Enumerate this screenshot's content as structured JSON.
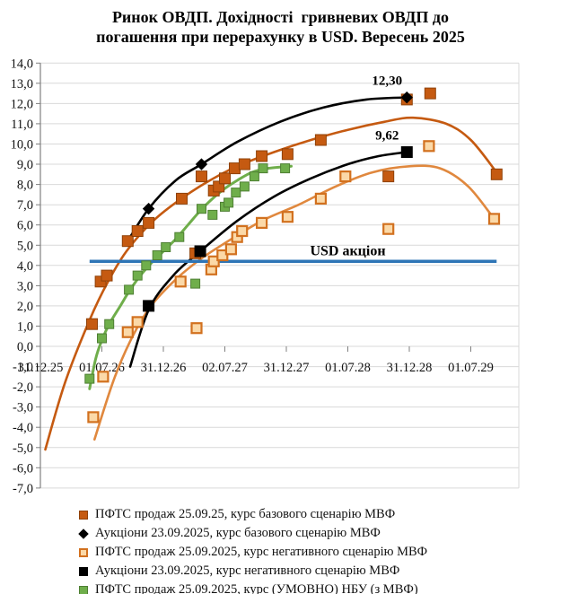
{
  "title_lines": [
    "Ринок ОВДП. Дохідності  гривневих ОВДП до",
    "погашення при перерахунку в USD. Вересень 2025"
  ],
  "colors": {
    "base_orange": "#C55A11",
    "neg_orange_line": "#E0883E",
    "neg_orange_fill": "#FBD9A8",
    "neg_orange_border": "#D2711F",
    "green": "#6FAE4B",
    "black": "#000000",
    "usd_blue": "#2E75B6",
    "grid": "#D9D9D9",
    "axis": "#808080"
  },
  "chart_data": {
    "type": "scatter",
    "title": "Ринок ОВДП. Дохідності гривневих ОВДП до погашення при перерахунку в USD. Вересень 2025",
    "x_unit_note": "x = years after 31.12.2025; axis ticks every 0.5 year",
    "x_ticks": [
      "31.12.25",
      "01.07.26",
      "31.12.26",
      "02.07.27",
      "31.12.27",
      "01.07.28",
      "31.12.28",
      "01.07.29"
    ],
    "x_tick_years": [
      0,
      0.5,
      1.0,
      1.5,
      2.0,
      2.5,
      3.0,
      3.5
    ],
    "y_tick_values": [
      14,
      13,
      12,
      11,
      10,
      9,
      8,
      7,
      6,
      5,
      4,
      3,
      2,
      1,
      0,
      -1,
      -2,
      -3,
      -4,
      -5,
      -6,
      -7
    ],
    "y_tick_labels": [
      "14,0",
      "13,0",
      "12,0",
      "11,0",
      "10,0",
      "9,0",
      "8,0",
      "7,0",
      "6,0",
      "5,0",
      "4,0",
      "3,0",
      "2,0",
      "1,0",
      "0,0",
      "-1,0",
      "-2,0",
      "-3,0",
      "-4,0",
      "-5,0",
      "-6,0",
      "-7,0"
    ],
    "ylim": [
      -7,
      14
    ],
    "grid": "horizontal",
    "legend_position": "bottom",
    "reference_line": {
      "label": "USD акціон",
      "value": 4.2,
      "t_start": 0.4,
      "t_end": 3.71,
      "color": "#2E75B6"
    },
    "series": [
      {
        "name": "ПФТС продаж 25.09.25, курс базового сценарію МВФ",
        "marker": "square",
        "size": 12,
        "fill": "#C55A11",
        "stroke": "#8F4108",
        "line": "#C55A11",
        "points": [
          [
            0.42,
            1.1
          ],
          [
            0.49,
            3.2
          ],
          [
            0.54,
            3.5
          ],
          [
            0.71,
            5.2
          ],
          [
            0.79,
            5.7
          ],
          [
            0.88,
            6.1
          ],
          [
            1.15,
            7.3
          ],
          [
            1.26,
            4.6
          ],
          [
            1.31,
            8.4
          ],
          [
            1.41,
            7.7
          ],
          [
            1.45,
            7.9
          ],
          [
            1.5,
            8.3
          ],
          [
            1.58,
            8.8
          ],
          [
            1.66,
            9.0
          ],
          [
            1.8,
            9.4
          ],
          [
            2.01,
            9.5
          ],
          [
            2.28,
            10.2
          ],
          [
            2.83,
            8.4
          ],
          [
            2.98,
            12.2
          ],
          [
            3.17,
            12.5
          ],
          [
            3.71,
            8.5
          ]
        ],
        "trend": [
          [
            0.04,
            -5.1
          ],
          [
            0.2,
            -1.8
          ],
          [
            0.4,
            1.3
          ],
          [
            0.55,
            3.2
          ],
          [
            0.7,
            4.7
          ],
          [
            0.9,
            6.1
          ],
          [
            1.1,
            7.1
          ],
          [
            1.35,
            8.1
          ],
          [
            1.6,
            8.9
          ],
          [
            1.9,
            9.6
          ],
          [
            2.2,
            10.2
          ],
          [
            2.5,
            10.7
          ],
          [
            2.8,
            11.1
          ],
          [
            3.03,
            11.3
          ],
          [
            3.3,
            11.0
          ],
          [
            3.5,
            10.2
          ],
          [
            3.71,
            8.6
          ]
        ]
      },
      {
        "name": "Аукціони 23.09.2025, курс базового сценарію МВФ",
        "marker": "diamond",
        "size": 8,
        "fill": "#000000",
        "stroke": "#000000",
        "line": "#000000",
        "points": [
          [
            0.88,
            6.8
          ],
          [
            1.31,
            9.0
          ],
          [
            2.98,
            12.3
          ]
        ],
        "trend": [
          [
            0.69,
            5.0
          ],
          [
            0.88,
            6.8
          ],
          [
            1.1,
            8.2
          ],
          [
            1.31,
            9.0
          ],
          [
            1.6,
            10.1
          ],
          [
            1.95,
            11.1
          ],
          [
            2.3,
            11.8
          ],
          [
            2.65,
            12.2
          ],
          [
            2.98,
            12.3
          ]
        ],
        "labels": [
          {
            "t": 2.98,
            "v": 12.3,
            "text": "12,30"
          }
        ]
      },
      {
        "name": "ПФТС продаж 25.09.2025, курс негативного сценарію МВФ",
        "marker": "square-open",
        "size": 11,
        "fill": "#FBD9A8",
        "stroke": "#D2711F",
        "line": "#E0883E",
        "points": [
          [
            0.43,
            -3.5
          ],
          [
            0.51,
            -1.5
          ],
          [
            0.71,
            0.7
          ],
          [
            0.79,
            1.2
          ],
          [
            1.14,
            3.2
          ],
          [
            1.27,
            0.9
          ],
          [
            1.39,
            3.8
          ],
          [
            1.41,
            4.2
          ],
          [
            1.48,
            4.5
          ],
          [
            1.55,
            4.8
          ],
          [
            1.6,
            5.4
          ],
          [
            1.64,
            5.7
          ],
          [
            1.8,
            6.1
          ],
          [
            2.01,
            6.4
          ],
          [
            2.28,
            7.3
          ],
          [
            2.48,
            8.4
          ],
          [
            2.83,
            5.8
          ],
          [
            3.16,
            9.9
          ],
          [
            3.69,
            6.3
          ]
        ],
        "trend": [
          [
            0.44,
            -4.6
          ],
          [
            0.6,
            -1.6
          ],
          [
            0.75,
            0.5
          ],
          [
            0.9,
            2.0
          ],
          [
            1.1,
            3.3
          ],
          [
            1.3,
            4.3
          ],
          [
            1.5,
            5.1
          ],
          [
            1.8,
            6.2
          ],
          [
            2.1,
            7.0
          ],
          [
            2.4,
            7.9
          ],
          [
            2.7,
            8.6
          ],
          [
            3.0,
            8.9
          ],
          [
            3.25,
            8.8
          ],
          [
            3.48,
            7.9
          ],
          [
            3.69,
            6.3
          ]
        ]
      },
      {
        "name": "Аукціони 23.09.2025, курс негативного сценарію МВФ",
        "marker": "square",
        "size": 12,
        "fill": "#000000",
        "stroke": "#000000",
        "line": "#000000",
        "points": [
          [
            0.88,
            2.0
          ],
          [
            1.3,
            4.7
          ],
          [
            2.98,
            9.6
          ]
        ],
        "trend": [
          [
            0.73,
            -1.0
          ],
          [
            0.88,
            1.8
          ],
          [
            1.08,
            3.5
          ],
          [
            1.3,
            4.7
          ],
          [
            1.6,
            6.2
          ],
          [
            1.9,
            7.4
          ],
          [
            2.2,
            8.3
          ],
          [
            2.5,
            9.0
          ],
          [
            2.75,
            9.4
          ],
          [
            2.98,
            9.6
          ]
        ],
        "labels": [
          {
            "t": 2.98,
            "v": 9.6,
            "text": "9,62"
          }
        ]
      },
      {
        "name": "ПФТС продаж 25.09.2025, курс (УМОВНО) НБУ (з МВФ)",
        "marker": "square",
        "size": 10,
        "fill": "#6FAE4B",
        "stroke": "#4E7F33",
        "line": "#6FAE4B",
        "points": [
          [
            0.4,
            -1.6
          ],
          [
            0.5,
            0.4
          ],
          [
            0.56,
            1.1
          ],
          [
            0.72,
            2.8
          ],
          [
            0.79,
            3.5
          ],
          [
            0.86,
            4.0
          ],
          [
            0.95,
            4.5
          ],
          [
            1.02,
            4.9
          ],
          [
            1.13,
            5.4
          ],
          [
            1.26,
            3.1
          ],
          [
            1.31,
            6.8
          ],
          [
            1.4,
            6.5
          ],
          [
            1.5,
            6.9
          ],
          [
            1.53,
            7.1
          ],
          [
            1.59,
            7.6
          ],
          [
            1.66,
            7.9
          ],
          [
            1.74,
            8.4
          ],
          [
            1.81,
            8.8
          ],
          [
            1.99,
            8.8
          ]
        ],
        "trend": [
          [
            0.4,
            -2.1
          ],
          [
            0.45,
            -0.6
          ],
          [
            0.5,
            0.3
          ],
          [
            0.56,
            1.1
          ],
          [
            0.65,
            2.0
          ],
          [
            0.72,
            2.7
          ],
          [
            0.8,
            3.4
          ],
          [
            0.9,
            4.1
          ],
          [
            1.0,
            4.7
          ],
          [
            1.1,
            5.3
          ],
          [
            1.2,
            6.0
          ],
          [
            1.3,
            6.7
          ],
          [
            1.4,
            7.3
          ],
          [
            1.5,
            7.8
          ],
          [
            1.6,
            8.2
          ],
          [
            1.72,
            8.6
          ],
          [
            1.85,
            8.8
          ],
          [
            2.04,
            8.9
          ]
        ]
      }
    ]
  },
  "legend": {
    "items": [
      {
        "label": "ПФТС продаж 25.09.25, курс базового сценарію МВФ",
        "marker": "square",
        "fill": "#C55A11",
        "stroke": "#8F4108"
      },
      {
        "label": "Аукціони 23.09.2025, курс базового сценарію МВФ",
        "marker": "diamond",
        "fill": "#000000",
        "stroke": "#000000"
      },
      {
        "label": "ПФТС продаж 25.09.2025, курс негативного сценарію МВФ",
        "marker": "square-open",
        "fill": "#FBD9A8",
        "stroke": "#D2711F"
      },
      {
        "label": "Аукціони 23.09.2025, курс негативного сценарію МВФ",
        "marker": "square",
        "fill": "#000000",
        "stroke": "#000000"
      },
      {
        "label": "ПФТС продаж 25.09.2025, курс (УМОВНО) НБУ (з МВФ)",
        "marker": "square",
        "fill": "#6FAE4B",
        "stroke": "#4E7F33"
      }
    ]
  }
}
